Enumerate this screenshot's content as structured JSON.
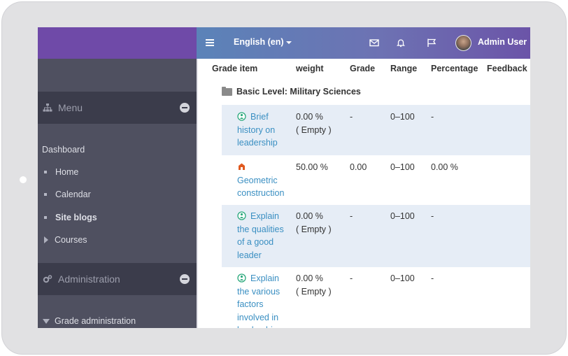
{
  "sidebar": {
    "menu_block": {
      "title": "Menu",
      "icon": "sitemap-icon"
    },
    "dashboard_label": "Dashboard",
    "items": [
      {
        "label": "Home",
        "bold": false
      },
      {
        "label": "Calendar",
        "bold": false
      },
      {
        "label": "Site blogs",
        "bold": true
      },
      {
        "label": "Courses",
        "bold": false
      }
    ],
    "admin_block": {
      "title": "Administration",
      "icon": "cogs-icon"
    },
    "grade_admin_label": "Grade administration"
  },
  "navbar": {
    "language": "English (en)",
    "user_name": "Admin User",
    "icons": [
      "menu-icon",
      "mail-icon",
      "bell-icon",
      "flag-icon"
    ]
  },
  "table": {
    "headers": [
      "Grade item",
      "weight",
      "Grade",
      "Range",
      "Percentage",
      "Feedback"
    ],
    "category": "Basic Level: Military Sciences",
    "rows": [
      {
        "item_lines": [
          "Brief",
          "history on",
          "leadership"
        ],
        "icon": "quiz-icon",
        "weight_lines": [
          "0.00 %",
          "( Empty )"
        ],
        "grade": "-",
        "range": "0–100",
        "percentage": "-"
      },
      {
        "item_lines": [
          "",
          "Geometric",
          "construction"
        ],
        "icon": "assignment-icon",
        "weight_lines": [
          "50.00 %"
        ],
        "grade": "0.00",
        "range": "0–100",
        "percentage": "0.00 %"
      },
      {
        "item_lines": [
          "Explain",
          "the qualities",
          "of a good",
          "leader"
        ],
        "icon": "quiz-icon",
        "weight_lines": [
          "0.00 %",
          "( Empty )"
        ],
        "grade": "-",
        "range": "0–100",
        "percentage": "-"
      },
      {
        "item_lines": [
          "Explain",
          "the various",
          "factors",
          "involved in",
          "leadership"
        ],
        "icon": "quiz-icon",
        "weight_lines": [
          "0.00 %",
          "( Empty )"
        ],
        "grade": "-",
        "range": "0–100",
        "percentage": "-"
      }
    ]
  },
  "colors": {
    "brand": "#6f4aa8",
    "sidebar": "#4f5060",
    "block_header": "#3b3c4b",
    "link": "#3a8fc2",
    "row_alt": "#e6edf6"
  }
}
